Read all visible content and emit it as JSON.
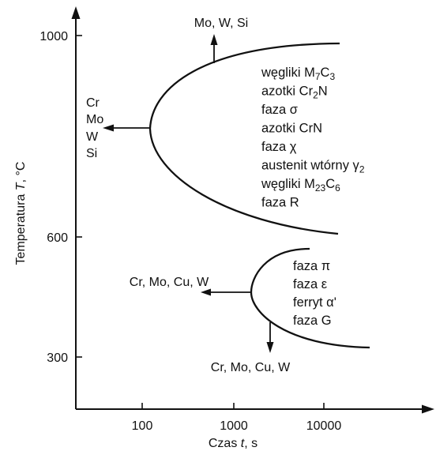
{
  "axes": {
    "ylabel_prefix": "Temperatura ",
    "ylabel_var": "T",
    "ylabel_unit": ", °C",
    "xlabel_prefix": "Czas ",
    "xlabel_var": "t",
    "xlabel_unit": ", s",
    "y_ticks": [
      "1000",
      "600",
      "300"
    ],
    "x_ticks": [
      "100",
      "1000",
      "10000"
    ]
  },
  "upper_curve": {
    "arrow_up_label": "Mo, W, Si",
    "arrow_left_labels": [
      "Cr",
      "Mo",
      "W",
      "Si"
    ],
    "phases": [
      {
        "parts": [
          {
            "t": "węgliki M"
          },
          {
            "t": "7",
            "sub": true
          },
          {
            "t": "C"
          },
          {
            "t": "3",
            "sub": true
          }
        ]
      },
      {
        "parts": [
          {
            "t": "azotki Cr"
          },
          {
            "t": "2",
            "sub": true
          },
          {
            "t": "N"
          }
        ]
      },
      {
        "parts": [
          {
            "t": "faza σ"
          }
        ]
      },
      {
        "parts": [
          {
            "t": "azotki CrN"
          }
        ]
      },
      {
        "parts": [
          {
            "t": "faza χ"
          }
        ]
      },
      {
        "parts": [
          {
            "t": "austenit wtórny γ"
          },
          {
            "t": "2",
            "sub": true
          }
        ]
      },
      {
        "parts": [
          {
            "t": "węgliki M"
          },
          {
            "t": "23",
            "sub": true
          },
          {
            "t": "C"
          },
          {
            "t": "6",
            "sub": true
          }
        ]
      },
      {
        "parts": [
          {
            "t": "faza R"
          }
        ]
      }
    ]
  },
  "lower_curve": {
    "arrow_left_label": "Cr, Mo, Cu, W",
    "arrow_down_label": "Cr, Mo, Cu, W",
    "phases": [
      {
        "parts": [
          {
            "t": "faza π"
          }
        ]
      },
      {
        "parts": [
          {
            "t": "faza ε"
          }
        ]
      },
      {
        "parts": [
          {
            "t": "ferryt α'"
          }
        ]
      },
      {
        "parts": [
          {
            "t": "faza G"
          }
        ]
      }
    ]
  }
}
